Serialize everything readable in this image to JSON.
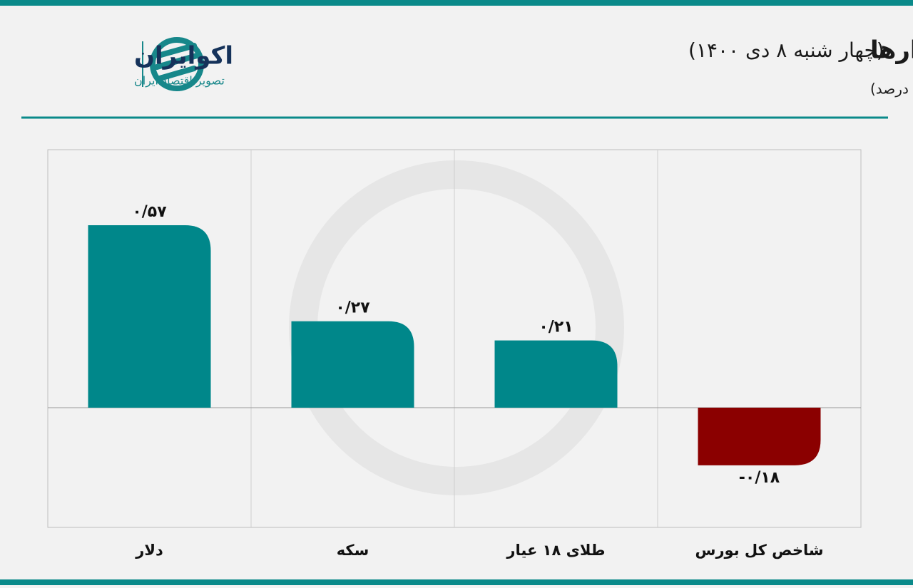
{
  "logo": {
    "name": "اکوایران",
    "tagline": "تصویر اقتصاد ایران"
  },
  "chart_data": {
    "type": "bar",
    "title": "بازدهی بازارها",
    "subtitle": "(چهار شنبه ۸ دی ۱۴۰۰)",
    "unit_note": "(واحد: درصد)",
    "categories": [
      "دلار",
      "سکه",
      "طلای ۱۸ عیار",
      "شاخص کل بورس"
    ],
    "values": [
      0.57,
      0.27,
      0.21,
      -0.18
    ],
    "value_labels": [
      "۰/۵۷",
      "۰/۲۷",
      "۰/۲۱",
      "-۰/۱۸"
    ],
    "positive_color": "#00878a",
    "negative_color": "#8b0000"
  }
}
